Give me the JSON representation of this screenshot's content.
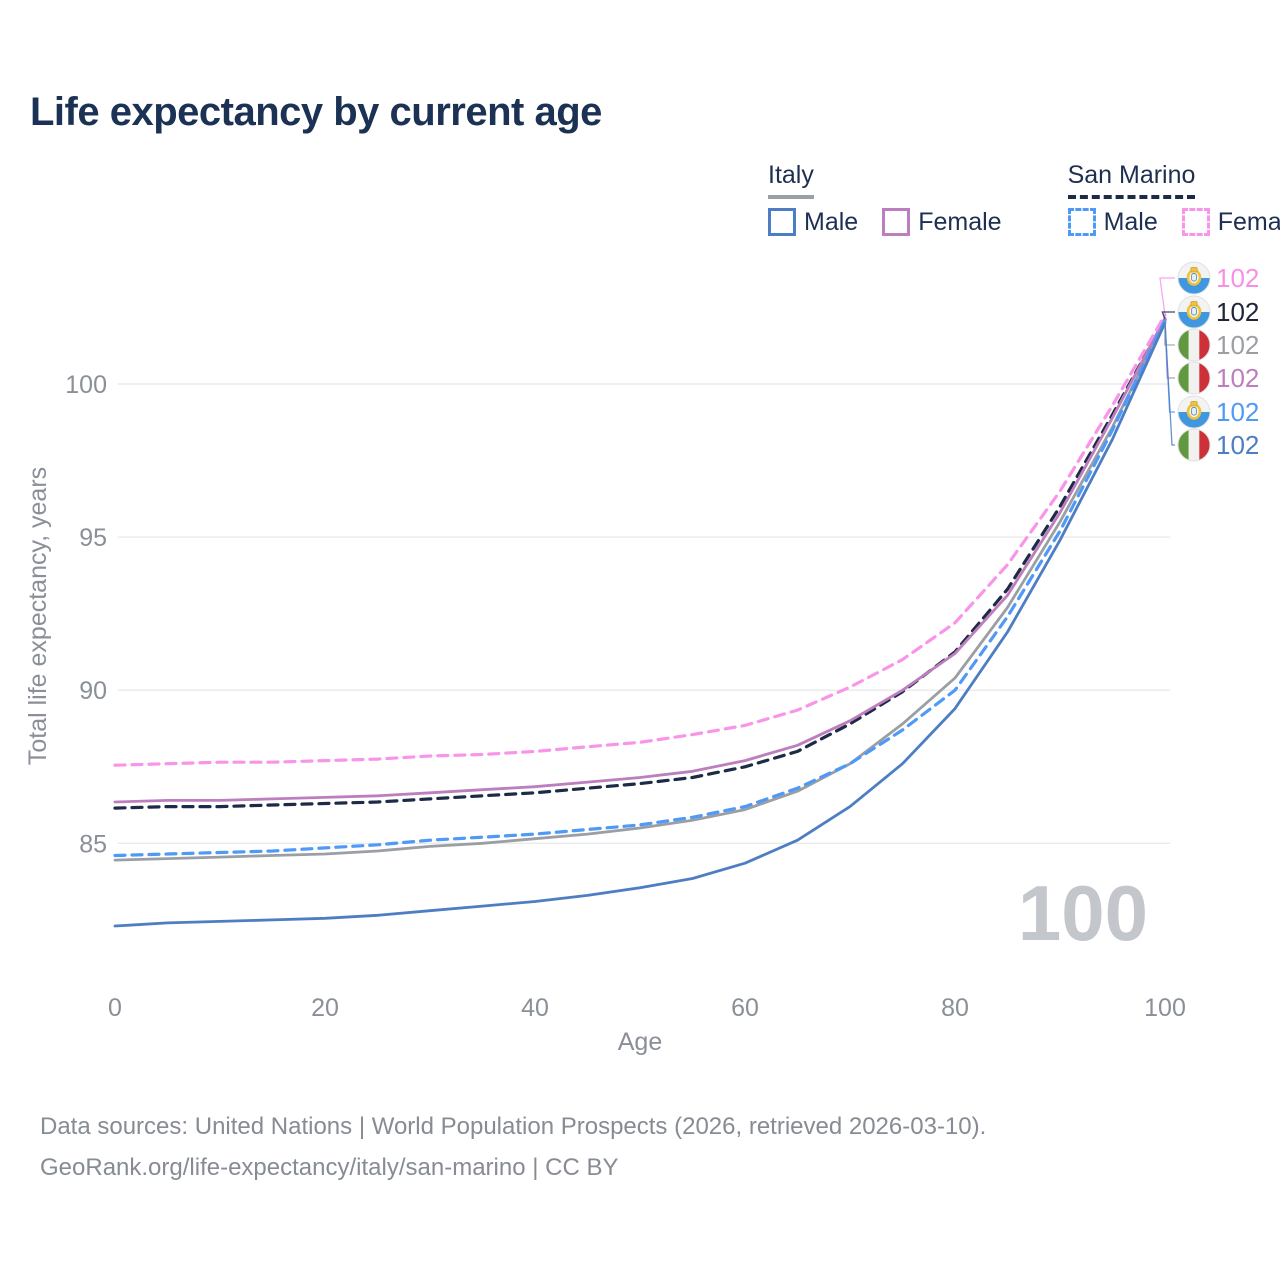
{
  "title": "Life expectancy by current age",
  "legend": {
    "groups": [
      {
        "label": "Italy",
        "line_style": "solid",
        "underline_color": "#9aa0a6",
        "items": [
          {
            "label": "Male",
            "color": "#4d7ec3",
            "style": "solid"
          },
          {
            "label": "Female",
            "color": "#bd7ebe",
            "style": "solid"
          }
        ]
      },
      {
        "label": "San Marino",
        "line_style": "dashed",
        "underline_color": "#1d2b47",
        "items": [
          {
            "label": "Male",
            "color": "#4f99f7",
            "style": "dashed"
          },
          {
            "label": "Female",
            "color": "#f995e9",
            "style": "dashed"
          }
        ]
      }
    ]
  },
  "watermark": "100",
  "footer": {
    "line1": "Data sources: United Nations | World Population Prospects (2026, retrieved 2026-03-10).",
    "line2": "GeoRank.org/life-expectancy/italy/san-marino | CC BY"
  },
  "colors": {
    "title_text": "#1c3254",
    "axis_text": "#8a8f98",
    "gridline": "#e9eaec",
    "watermark": "#c3c6cb",
    "footer_text": "#868b94"
  },
  "chart_data": {
    "type": "line",
    "title": "Life expectancy by current age",
    "xlabel": "Age",
    "ylabel": "Total life expectancy, years",
    "x_ticks": [
      0,
      20,
      40,
      60,
      80,
      100
    ],
    "y_ticks": [
      85,
      90,
      95,
      100
    ],
    "xlim": [
      0,
      100
    ],
    "ylim": [
      80.5,
      104
    ],
    "grid": "horizontal-only",
    "legend_position": "top-right",
    "x": [
      0,
      5,
      10,
      15,
      20,
      25,
      30,
      35,
      40,
      45,
      50,
      55,
      60,
      65,
      70,
      75,
      80,
      85,
      90,
      95,
      100
    ],
    "series": [
      {
        "name": "Italy All",
        "color": "#9b9fa4",
        "dash": "solid",
        "values": [
          84.45,
          84.5,
          84.55,
          84.6,
          84.65,
          84.75,
          84.9,
          85.0,
          85.15,
          85.3,
          85.5,
          85.75,
          86.1,
          86.7,
          87.6,
          88.9,
          90.4,
          92.7,
          95.5,
          98.6,
          102.05
        ]
      },
      {
        "name": "San Marino All",
        "color": "#1d2b47",
        "dash": "dashed",
        "values": [
          86.15,
          86.2,
          86.2,
          86.25,
          86.3,
          86.35,
          86.45,
          86.55,
          86.65,
          86.8,
          86.95,
          87.15,
          87.5,
          88.0,
          88.9,
          89.95,
          91.25,
          93.3,
          96.0,
          99.0,
          102.1
        ]
      },
      {
        "name": "Italy Female",
        "color": "#bd7ebe",
        "dash": "solid",
        "values": [
          86.35,
          86.4,
          86.4,
          86.45,
          86.5,
          86.55,
          86.65,
          86.75,
          86.85,
          87.0,
          87.15,
          87.35,
          87.7,
          88.2,
          89.0,
          90.0,
          91.2,
          93.1,
          95.8,
          98.9,
          102.15
        ]
      },
      {
        "name": "San Marino Female",
        "color": "#f995e9",
        "dash": "dashed",
        "values": [
          87.55,
          87.6,
          87.65,
          87.65,
          87.7,
          87.75,
          87.85,
          87.9,
          88.0,
          88.15,
          88.3,
          88.55,
          88.85,
          89.35,
          90.1,
          91.0,
          92.2,
          94.1,
          96.5,
          99.3,
          102.25
        ]
      },
      {
        "name": "San Marino Male",
        "color": "#4f99f7",
        "dash": "dashed",
        "values": [
          84.6,
          84.65,
          84.7,
          84.75,
          84.85,
          84.95,
          85.1,
          85.2,
          85.3,
          85.45,
          85.6,
          85.85,
          86.2,
          86.8,
          87.6,
          88.7,
          90.0,
          92.4,
          95.2,
          98.5,
          102.1
        ]
      },
      {
        "name": "Italy Male",
        "color": "#4d7ec3",
        "dash": "solid",
        "values": [
          82.3,
          82.4,
          82.45,
          82.5,
          82.55,
          82.65,
          82.8,
          82.95,
          83.1,
          83.3,
          83.55,
          83.85,
          84.35,
          85.1,
          86.2,
          87.6,
          89.4,
          91.9,
          94.9,
          98.2,
          102.0
        ]
      }
    ],
    "end_labels": [
      {
        "series": "San Marino Female",
        "flag": "san-marino",
        "value": "102",
        "color": "#f78fe4"
      },
      {
        "series": "San Marino All",
        "flag": "san-marino",
        "value": "102",
        "color": "#20263a"
      },
      {
        "series": "Italy All",
        "flag": "italy",
        "value": "102",
        "color": "#9b9fa4"
      },
      {
        "series": "Italy Female",
        "flag": "italy",
        "value": "102",
        "color": "#bd7ebe"
      },
      {
        "series": "San Marino Male",
        "flag": "san-marino",
        "value": "102",
        "color": "#4f99f7"
      },
      {
        "series": "Italy Male",
        "flag": "italy",
        "value": "102",
        "color": "#4d7ec3"
      }
    ],
    "age_indicator_watermark": "100"
  }
}
